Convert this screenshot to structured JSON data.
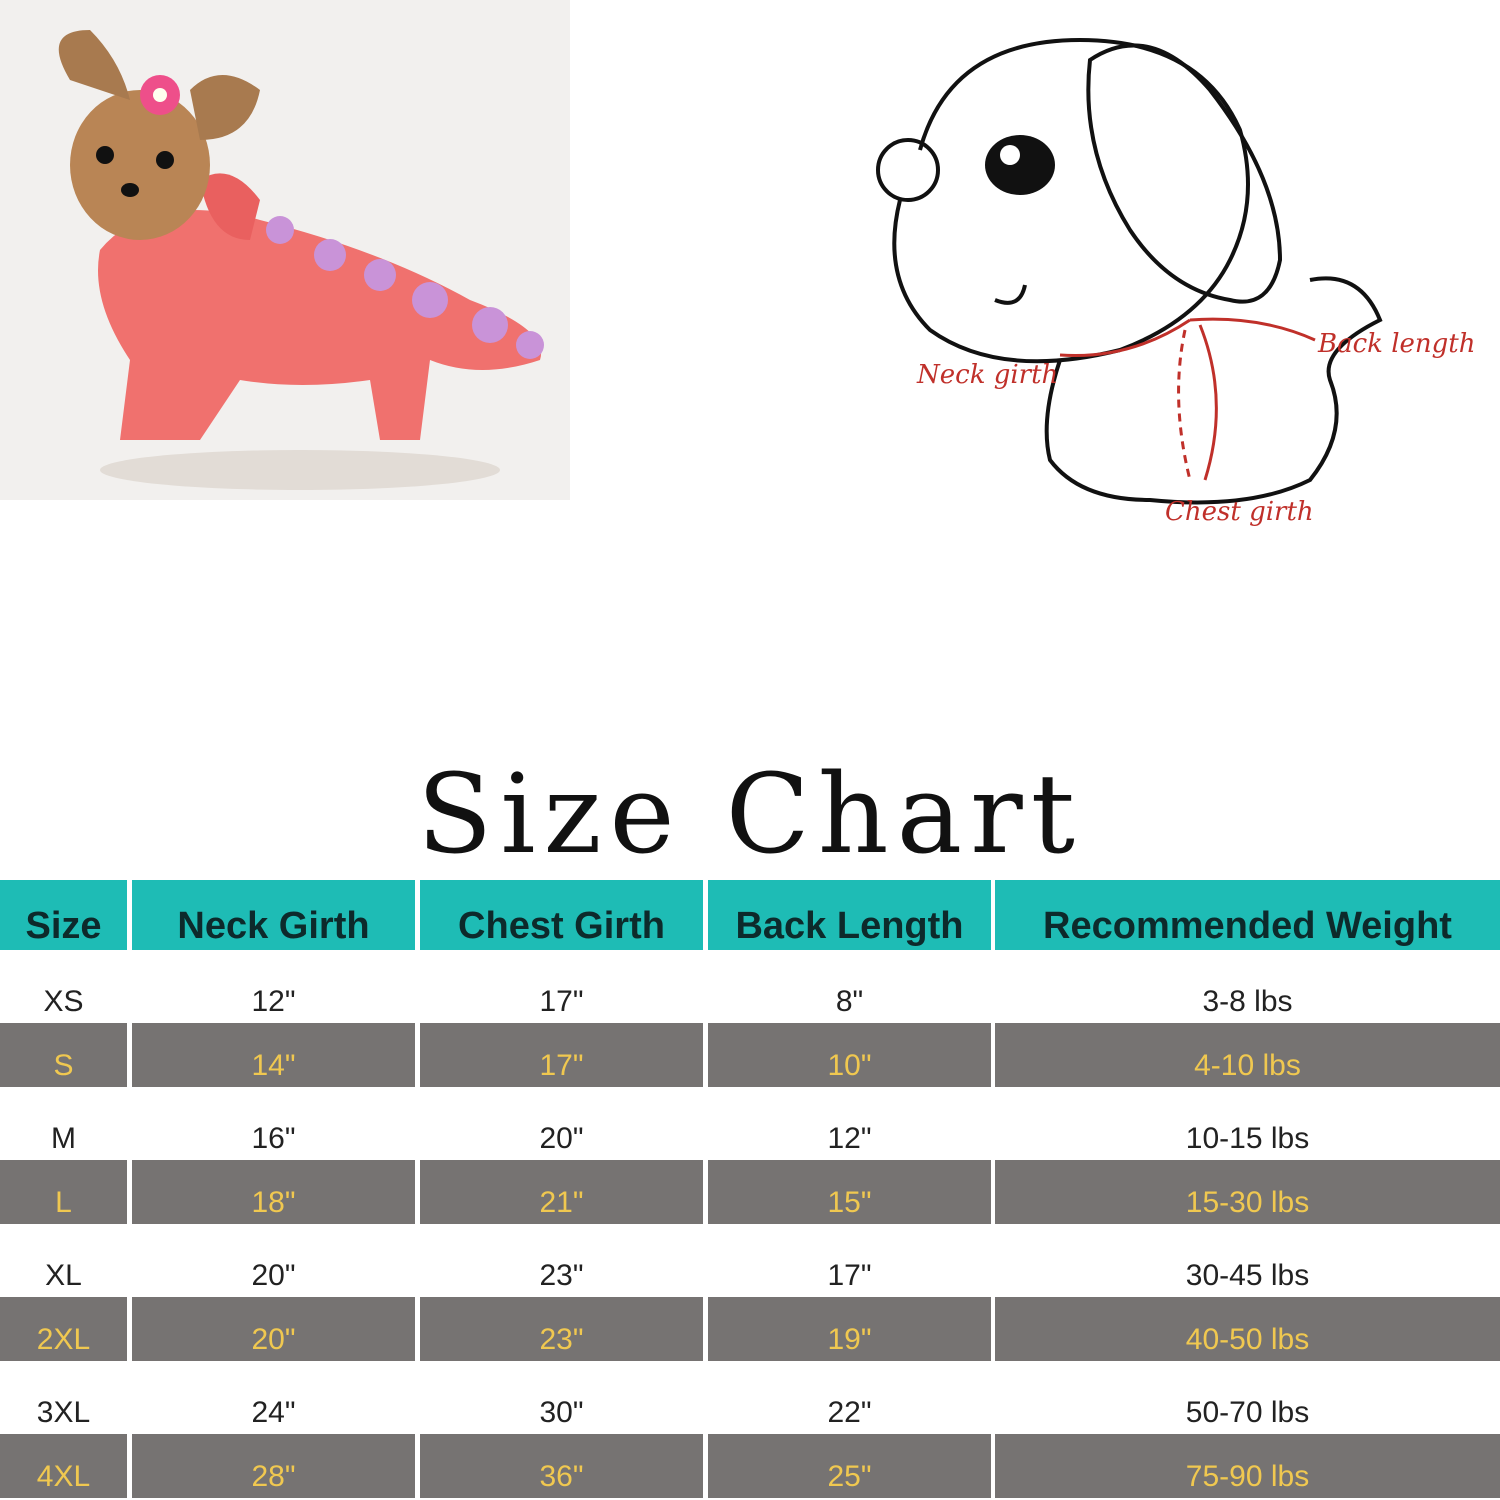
{
  "title": "Size Chart",
  "diagram_labels": {
    "neck": "Neck girth",
    "back": "Back length",
    "chest": "Chest girth"
  },
  "colors": {
    "header": "#1ebcb5",
    "gray_row": "#767372",
    "gray_text": "#f0c850",
    "measure_line": "#c0302a"
  },
  "table": {
    "headers": [
      "Size",
      "Neck Girth",
      "Chest Girth",
      "Back Length",
      "Recommended Weight"
    ],
    "rows": [
      [
        "XS",
        "12\"",
        "17\"",
        "8\"",
        "3-8 lbs"
      ],
      [
        "S",
        "14\"",
        "17\"",
        "10\"",
        "4-10 lbs"
      ],
      [
        "M",
        "16\"",
        "20\"",
        "12\"",
        "10-15 lbs"
      ],
      [
        "L",
        "18\"",
        "21\"",
        "15\"",
        "15-30 lbs"
      ],
      [
        "XL",
        "20\"",
        "23\"",
        "17\"",
        "30-45 lbs"
      ],
      [
        "2XL",
        "20\"",
        "23\"",
        "19\"",
        "40-50 lbs"
      ],
      [
        "3XL",
        "24\"",
        "30\"",
        "22\"",
        "50-70 lbs"
      ],
      [
        "4XL",
        "28\"",
        "36\"",
        "25\"",
        "75-90 lbs"
      ]
    ]
  }
}
